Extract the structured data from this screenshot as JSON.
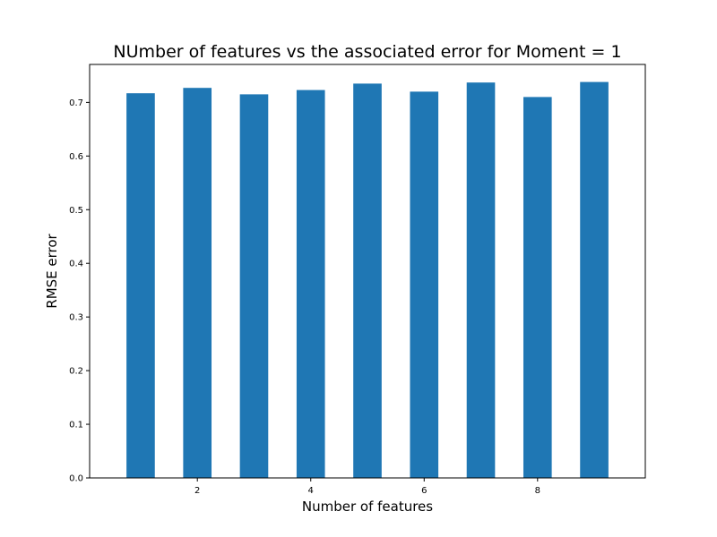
{
  "chart_data": {
    "type": "bar",
    "title": "NUmber of features vs the associated error for Moment = 1",
    "xlabel": "Number of features",
    "ylabel": "RMSE error",
    "x": [
      1,
      2,
      3,
      4,
      5,
      6,
      7,
      8,
      9
    ],
    "values": [
      0.717,
      0.727,
      0.715,
      0.723,
      0.735,
      0.72,
      0.737,
      0.71,
      0.738
    ],
    "xlim": [
      0.1,
      9.9
    ],
    "ylim": [
      0,
      0.7707
    ],
    "xticks": [
      2,
      4,
      6,
      8
    ],
    "xtick_labels": [
      "2",
      "4",
      "6",
      "8"
    ],
    "yticks": [
      0.0,
      0.1,
      0.2,
      0.3,
      0.4,
      0.5,
      0.6,
      0.7
    ],
    "ytick_labels": [
      "0.0",
      "0.1",
      "0.2",
      "0.3",
      "0.4",
      "0.5",
      "0.6",
      "0.7"
    ],
    "bar_width": 0.5,
    "bar_color": "#1f77b4",
    "grid": false,
    "legend": "none"
  }
}
